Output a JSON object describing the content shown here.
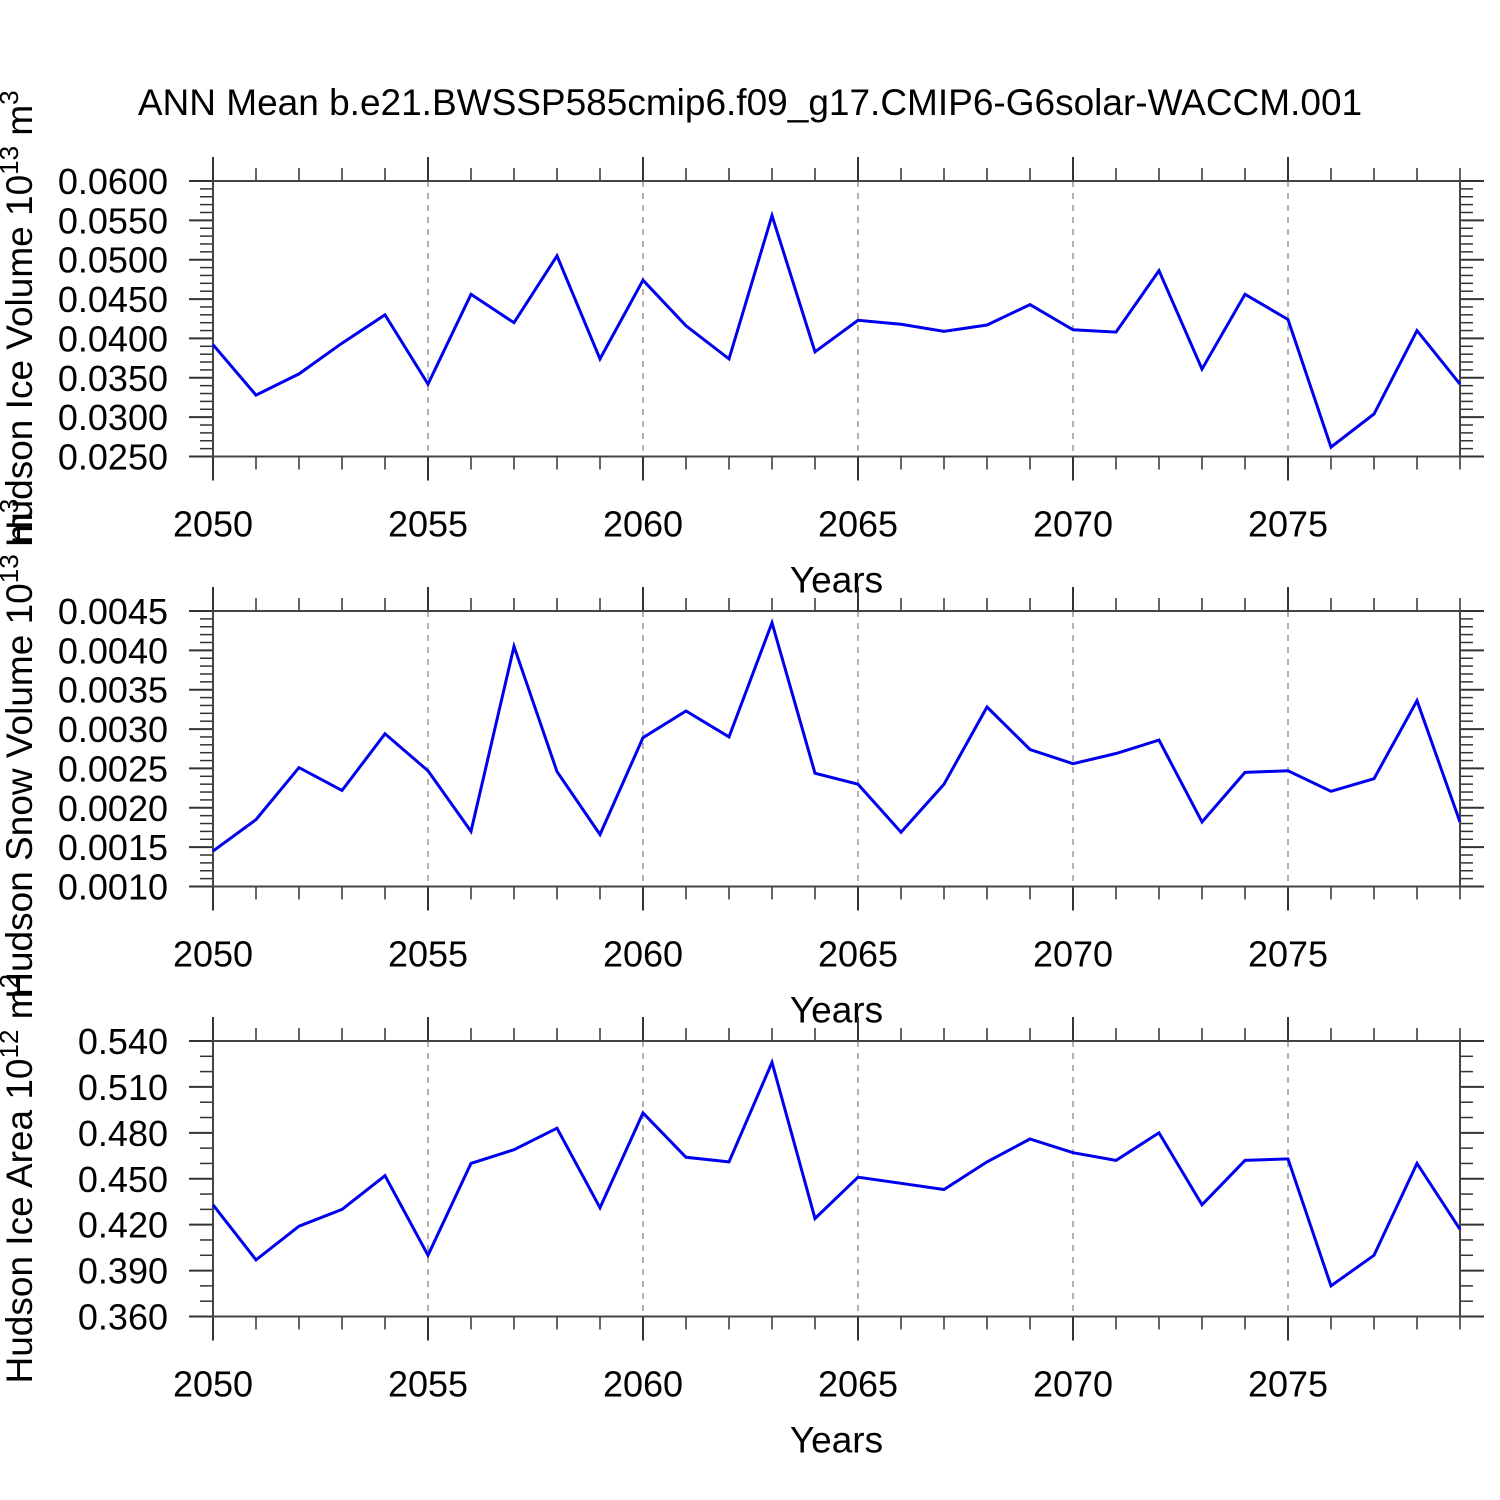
{
  "page": {
    "title": "ANN Mean b.e21.BWSSP585cmip6.f09_g17.CMIP6-G6solar-WACCM.001"
  },
  "style": {
    "line_color": "#0000EE",
    "grid_color": "#999999",
    "axis_color": "#444444",
    "tick_color": "#333333",
    "text_color": "#000000",
    "background": "#FFFFFF"
  },
  "chart_data": [
    {
      "id": "hudson-ice-volume",
      "type": "line",
      "ylabel": "Hudson Ice Volume 10^13 m^3",
      "ylabel_parts": [
        {
          "t": "Hudson Ice Volume 10"
        },
        {
          "t": "13",
          "sup": true
        },
        {
          "t": " m"
        },
        {
          "t": "3",
          "sup": true
        }
      ],
      "xlabel": "Years",
      "xlim": [
        2050,
        2079
      ],
      "ylim": [
        0.025,
        0.06
      ],
      "xticks": [
        2050,
        2055,
        2060,
        2065,
        2070,
        2075
      ],
      "grid_x": [
        2055,
        2060,
        2065,
        2070,
        2075
      ],
      "yticks": [
        {
          "v": 0.025,
          "label": "0.0250"
        },
        {
          "v": 0.03,
          "label": "0.0300"
        },
        {
          "v": 0.035,
          "label": "0.0350"
        },
        {
          "v": 0.04,
          "label": "0.0400"
        },
        {
          "v": 0.045,
          "label": "0.0450"
        },
        {
          "v": 0.05,
          "label": "0.0500"
        },
        {
          "v": 0.055,
          "label": "0.0550"
        },
        {
          "v": 0.06,
          "label": "0.0600"
        }
      ],
      "yminor_step": 0.001,
      "years": [
        2050,
        2051,
        2052,
        2053,
        2054,
        2055,
        2056,
        2057,
        2058,
        2059,
        2060,
        2061,
        2062,
        2063,
        2064,
        2065,
        2066,
        2067,
        2068,
        2069,
        2070,
        2071,
        2072,
        2073,
        2074,
        2075,
        2076,
        2077,
        2078,
        2079
      ],
      "values": [
        0.0392,
        0.0328,
        0.0355,
        0.0394,
        0.043,
        0.0342,
        0.0456,
        0.042,
        0.0505,
        0.0374,
        0.0474,
        0.0416,
        0.0374,
        0.0556,
        0.0383,
        0.0423,
        0.0418,
        0.0409,
        0.0417,
        0.0443,
        0.0411,
        0.0408,
        0.0486,
        0.0361,
        0.0456,
        0.0424,
        0.0262,
        0.0304,
        0.041,
        0.0342
      ]
    },
    {
      "id": "hudson-snow-volume",
      "type": "line",
      "ylabel": "Hudson Snow Volume 10^13 m^3",
      "ylabel_parts": [
        {
          "t": "Hudson Snow Volume 10"
        },
        {
          "t": "13",
          "sup": true
        },
        {
          "t": " m"
        },
        {
          "t": "3",
          "sup": true
        }
      ],
      "xlabel": "Years",
      "xlim": [
        2050,
        2079
      ],
      "ylim": [
        0.001,
        0.0045
      ],
      "xticks": [
        2050,
        2055,
        2060,
        2065,
        2070,
        2075
      ],
      "grid_x": [
        2055,
        2060,
        2065,
        2070,
        2075
      ],
      "yticks": [
        {
          "v": 0.001,
          "label": "0.0010"
        },
        {
          "v": 0.0015,
          "label": "0.0015"
        },
        {
          "v": 0.002,
          "label": "0.0020"
        },
        {
          "v": 0.0025,
          "label": "0.0025"
        },
        {
          "v": 0.003,
          "label": "0.0030"
        },
        {
          "v": 0.0035,
          "label": "0.0035"
        },
        {
          "v": 0.004,
          "label": "0.0040"
        },
        {
          "v": 0.0045,
          "label": "0.0045"
        }
      ],
      "yminor_step": 0.0001,
      "years": [
        2050,
        2051,
        2052,
        2053,
        2054,
        2055,
        2056,
        2057,
        2058,
        2059,
        2060,
        2061,
        2062,
        2063,
        2064,
        2065,
        2066,
        2067,
        2068,
        2069,
        2070,
        2071,
        2072,
        2073,
        2074,
        2075,
        2076,
        2077,
        2078,
        2079
      ],
      "values": [
        0.00145,
        0.00185,
        0.00251,
        0.00222,
        0.00294,
        0.00247,
        0.0017,
        0.00405,
        0.00246,
        0.00166,
        0.00289,
        0.00323,
        0.0029,
        0.00435,
        0.00244,
        0.0023,
        0.00169,
        0.0023,
        0.00328,
        0.00274,
        0.00256,
        0.00269,
        0.00286,
        0.00182,
        0.00245,
        0.00247,
        0.00221,
        0.00237,
        0.00336,
        0.00182
      ]
    },
    {
      "id": "hudson-ice-area",
      "type": "line",
      "ylabel": "Hudson Ice Area 10^12 m^2",
      "ylabel_parts": [
        {
          "t": "Hudson Ice Area 10"
        },
        {
          "t": "12",
          "sup": true
        },
        {
          "t": " m"
        },
        {
          "t": "2",
          "sup": true
        }
      ],
      "xlabel": "Years",
      "xlim": [
        2050,
        2079
      ],
      "ylim": [
        0.36,
        0.54
      ],
      "xticks": [
        2050,
        2055,
        2060,
        2065,
        2070,
        2075
      ],
      "grid_x": [
        2055,
        2060,
        2065,
        2070,
        2075
      ],
      "yticks": [
        {
          "v": 0.36,
          "label": "0.360"
        },
        {
          "v": 0.39,
          "label": "0.390"
        },
        {
          "v": 0.42,
          "label": "0.420"
        },
        {
          "v": 0.45,
          "label": "0.450"
        },
        {
          "v": 0.48,
          "label": "0.480"
        },
        {
          "v": 0.51,
          "label": "0.510"
        },
        {
          "v": 0.54,
          "label": "0.540"
        }
      ],
      "yminor_step": 0.01,
      "years": [
        2050,
        2051,
        2052,
        2053,
        2054,
        2055,
        2056,
        2057,
        2058,
        2059,
        2060,
        2061,
        2062,
        2063,
        2064,
        2065,
        2066,
        2067,
        2068,
        2069,
        2070,
        2071,
        2072,
        2073,
        2074,
        2075,
        2076,
        2077,
        2078,
        2079
      ],
      "values": [
        0.433,
        0.397,
        0.419,
        0.43,
        0.452,
        0.4,
        0.46,
        0.469,
        0.483,
        0.431,
        0.493,
        0.464,
        0.461,
        0.526,
        0.424,
        0.451,
        0.447,
        0.443,
        0.461,
        0.476,
        0.467,
        0.462,
        0.48,
        0.433,
        0.462,
        0.463,
        0.38,
        0.4,
        0.46,
        0.417
      ]
    }
  ]
}
